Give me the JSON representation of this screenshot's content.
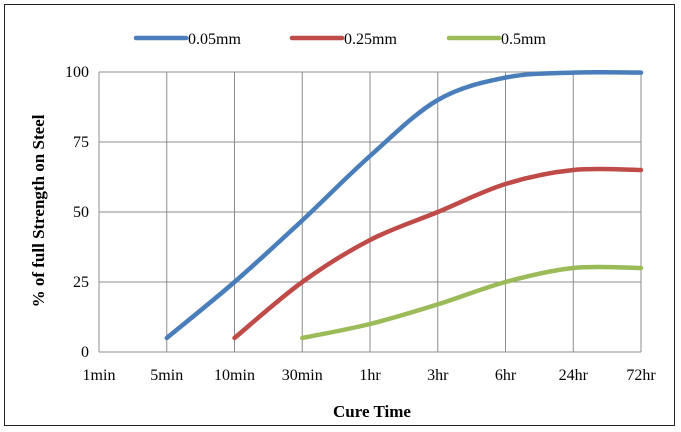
{
  "chart_data": {
    "type": "line",
    "title": "",
    "xlabel": "Cure Time",
    "ylabel": "% of full  Strength on Steel",
    "categories": [
      "1min",
      "5min",
      "10min",
      "30min",
      "1hr",
      "3hr",
      "6hr",
      "24hr",
      "72hr"
    ],
    "ylim": [
      0,
      100
    ],
    "yticks": [
      0,
      25,
      50,
      75,
      100
    ],
    "grid": true,
    "legend_position": "top",
    "series": [
      {
        "name": "0.05mm",
        "color": "#4A7EBB",
        "points": [
          [
            "5min",
            5
          ],
          [
            "10min",
            25
          ],
          [
            "30min",
            47
          ],
          [
            "1hr",
            70
          ],
          [
            "3hr",
            90
          ],
          [
            "6hr",
            98
          ],
          [
            "24hr",
            99.8
          ],
          [
            "72hr",
            99.8
          ]
        ]
      },
      {
        "name": "0.25mm",
        "color": "#BE4B48",
        "points": [
          [
            "10min",
            5
          ],
          [
            "30min",
            25
          ],
          [
            "1hr",
            40
          ],
          [
            "3hr",
            50
          ],
          [
            "6hr",
            60
          ],
          [
            "24hr",
            65
          ],
          [
            "72hr",
            65
          ]
        ]
      },
      {
        "name": "0.5mm",
        "color": "#9BBB59",
        "points": [
          [
            "30min",
            5
          ],
          [
            "1hr",
            10
          ],
          [
            "3hr",
            17
          ],
          [
            "6hr",
            25
          ],
          [
            "24hr",
            30
          ],
          [
            "72hr",
            30
          ]
        ]
      }
    ]
  }
}
